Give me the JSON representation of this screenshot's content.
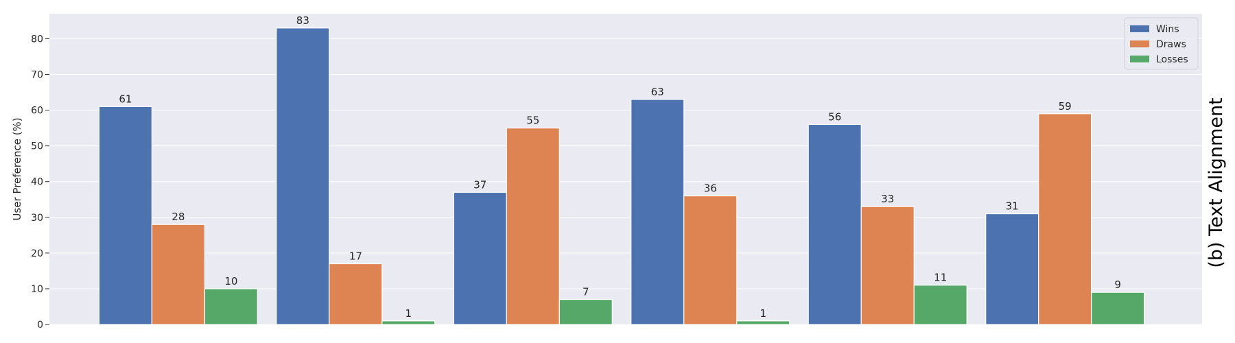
{
  "chart_data": {
    "type": "bar",
    "ylabel": "User Preference (%)",
    "side_title": "(b) Text Alignment",
    "ylim": [
      0,
      87
    ],
    "yticks": [
      0,
      10,
      20,
      30,
      40,
      50,
      60,
      70,
      80
    ],
    "grid": true,
    "legend_position": "top-right",
    "groups": 6,
    "series": [
      {
        "name": "Wins",
        "color": "#4c72b0",
        "values": [
          61,
          83,
          37,
          63,
          56,
          31
        ]
      },
      {
        "name": "Draws",
        "color": "#dd8452",
        "values": [
          28,
          17,
          55,
          36,
          33,
          59
        ]
      },
      {
        "name": "Losses",
        "color": "#55a868",
        "values": [
          10,
          1,
          7,
          1,
          11,
          9
        ]
      }
    ]
  },
  "style": {
    "plot_background": "#eaeaf2",
    "grid_color": "#ffffff"
  }
}
